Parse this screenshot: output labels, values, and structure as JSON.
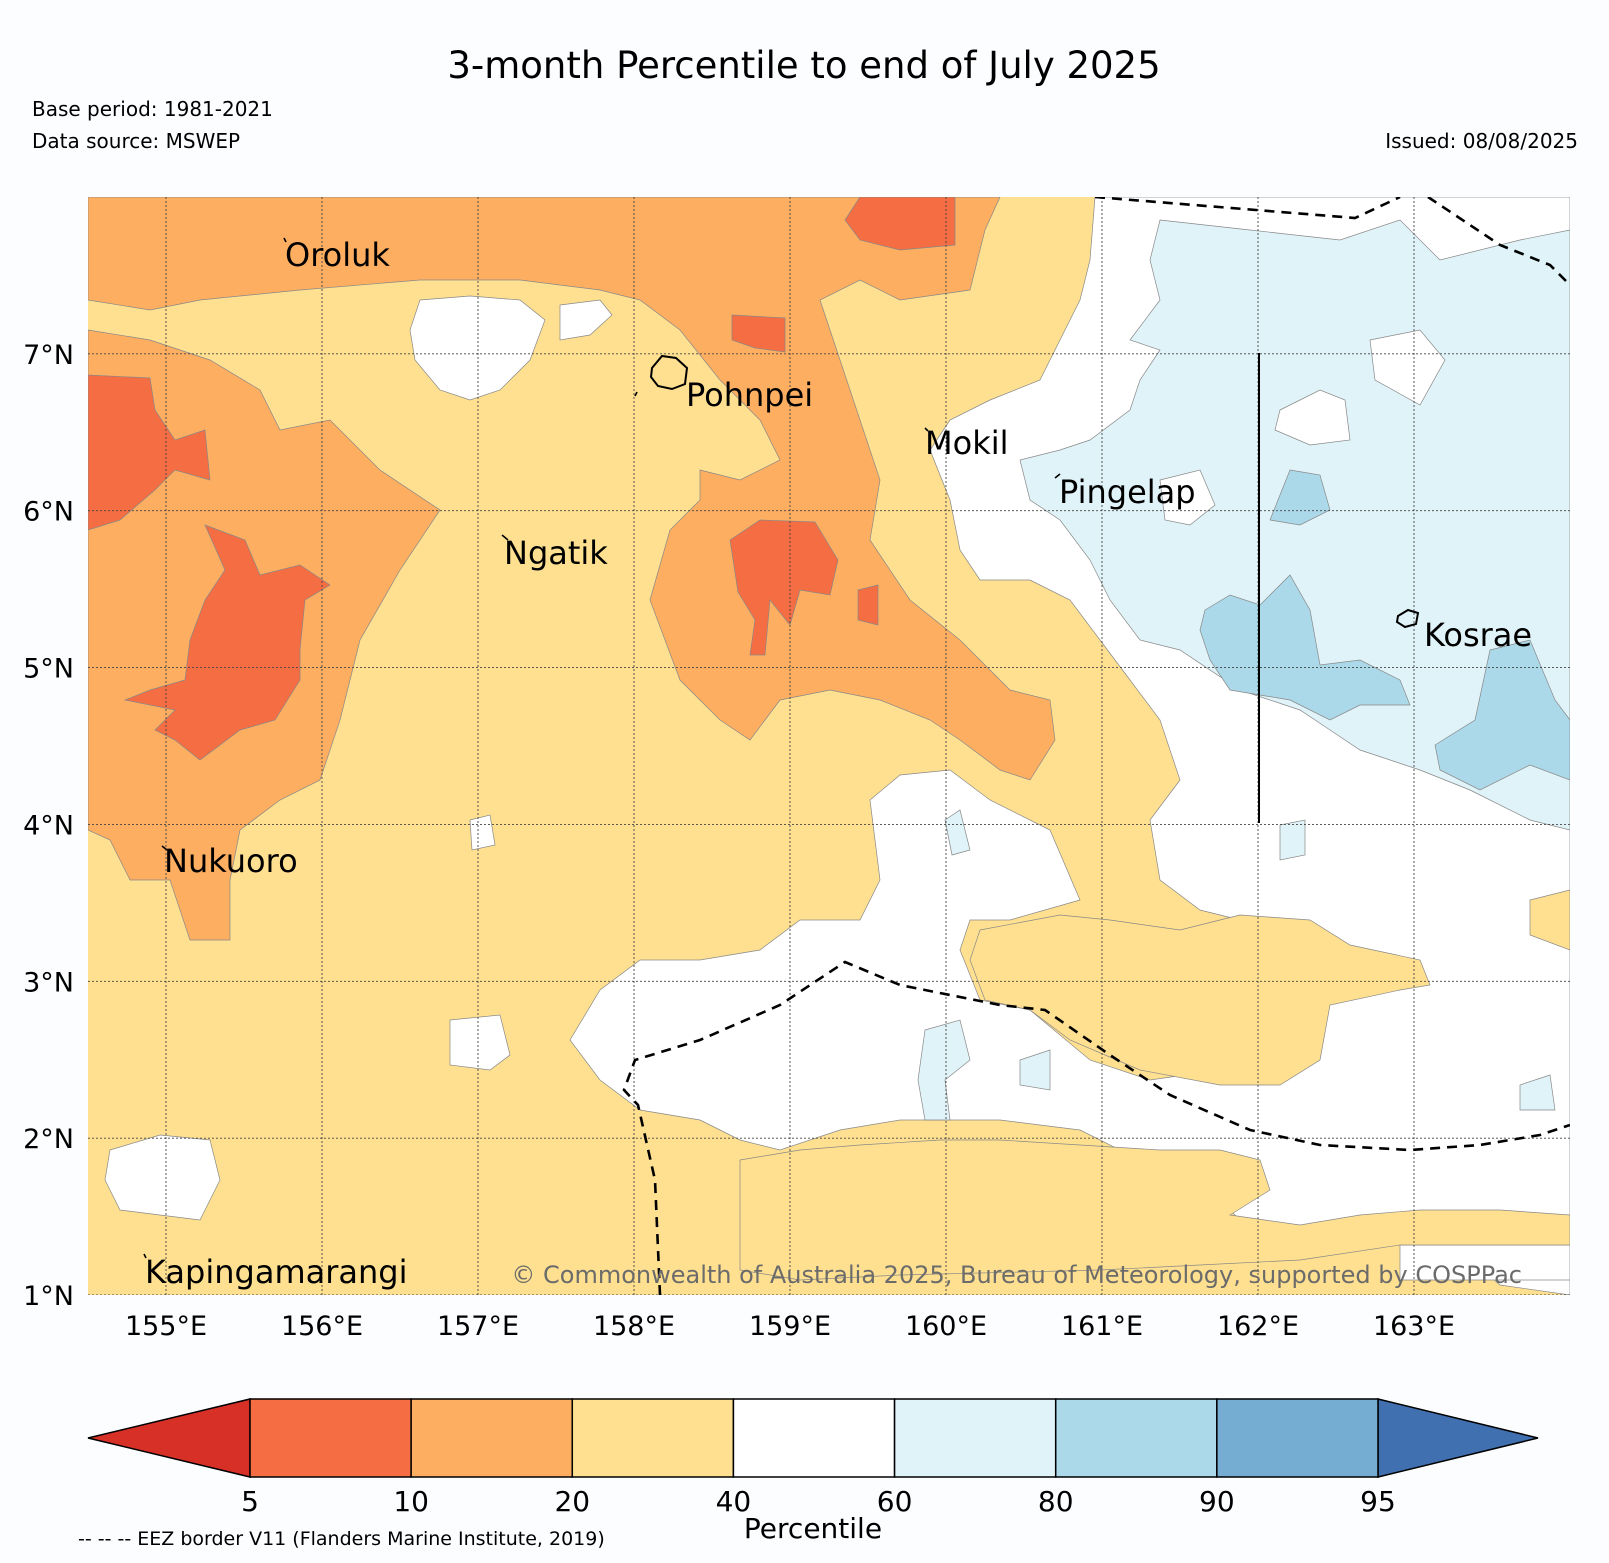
{
  "header": {
    "title": "3-month Percentile to end of July 2025",
    "base_period": "Base period: 1981-2021",
    "data_source": "Data source: MSWEP",
    "issued": "Issued: 08/08/2025"
  },
  "map": {
    "lon_range": [
      154.5,
      164.0
    ],
    "lat_range": [
      1.0,
      8.0
    ],
    "lon_ticks": [
      {
        "value": 155,
        "label": "155°E"
      },
      {
        "value": 156,
        "label": "156°E"
      },
      {
        "value": 157,
        "label": "157°E"
      },
      {
        "value": 158,
        "label": "158°E"
      },
      {
        "value": 159,
        "label": "159°E"
      },
      {
        "value": 160,
        "label": "160°E"
      },
      {
        "value": 161,
        "label": "161°E"
      },
      {
        "value": 162,
        "label": "162°E"
      },
      {
        "value": 163,
        "label": "163°E"
      }
    ],
    "lat_ticks": [
      {
        "value": 1,
        "label": "1°N"
      },
      {
        "value": 2,
        "label": "2°N"
      },
      {
        "value": 3,
        "label": "3°N"
      },
      {
        "value": 4,
        "label": "4°N"
      },
      {
        "value": 5,
        "label": "5°N"
      },
      {
        "value": 6,
        "label": "6°N"
      },
      {
        "value": 7,
        "label": "7°N"
      }
    ],
    "gridlines": true,
    "places": [
      {
        "name": "Oroluk",
        "lon": 155.75,
        "lat": 7.7
      },
      {
        "name": "Pohnpei",
        "lon": 158.2,
        "lat": 6.85
      },
      {
        "name": "Mokil",
        "lon": 159.8,
        "lat": 6.5
      },
      {
        "name": "Pingelap",
        "lon": 160.7,
        "lat": 6.2
      },
      {
        "name": "Ngatik",
        "lon": 157.15,
        "lat": 5.8
      },
      {
        "name": "Kosrae",
        "lon": 163.0,
        "lat": 5.3
      },
      {
        "name": "Nukuoro",
        "lon": 154.97,
        "lat": 3.85
      },
      {
        "name": "Kapingamarangi",
        "lon": 154.87,
        "lat": 1.08
      }
    ],
    "copyright": "© Commonwealth of Australia 2025, Bureau of Meteorology, supported by COSPPac",
    "eez_note": "-- -- -- EEZ border V11 (Flanders Marine Institute, 2019)"
  },
  "colorbar": {
    "label": "Percentile",
    "ticks": [
      "5",
      "10",
      "20",
      "40",
      "60",
      "80",
      "90",
      "95"
    ],
    "below_color": "#d73027",
    "above_color": "#4070b0",
    "bins": [
      {
        "range": "5-10",
        "color": "#f46d43"
      },
      {
        "range": "10-20",
        "color": "#fdae61"
      },
      {
        "range": "20-40",
        "color": "#fee090"
      },
      {
        "range": "40-60",
        "color": "#ffffff"
      },
      {
        "range": "60-80",
        "color": "#e0f3f8"
      },
      {
        "range": "80-90",
        "color": "#abd9e9"
      },
      {
        "range": "90-95",
        "color": "#74add1"
      }
    ]
  }
}
